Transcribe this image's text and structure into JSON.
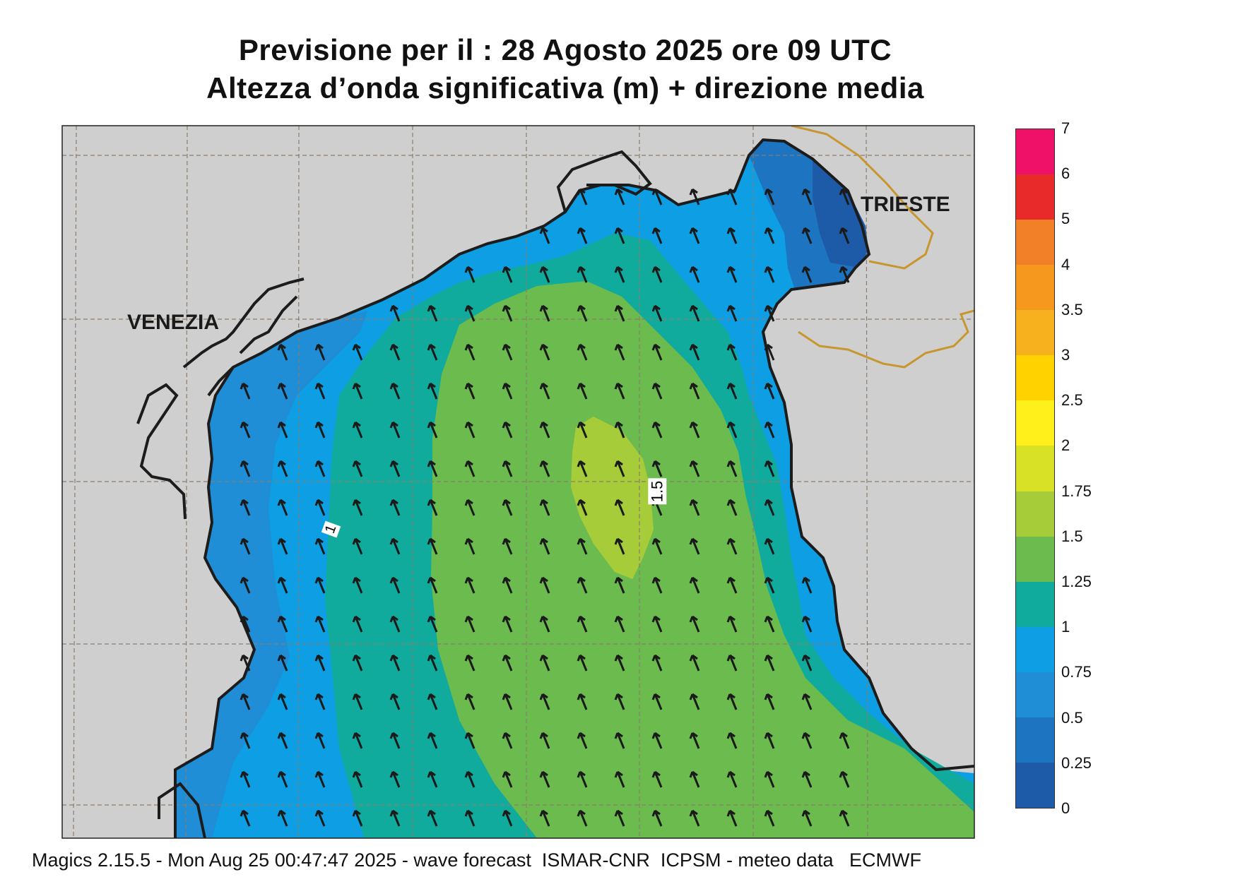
{
  "title_line1": "Previsione per il  :  28   Agosto  2025   ore 09 UTC",
  "title_line2": "Altezza d’onda significativa (m) + direzione media",
  "labels": {
    "venezia": "VENEZIA",
    "trieste": "TRIESTE"
  },
  "contour_labels": {
    "c1": "1",
    "c15": "1.5"
  },
  "legend": {
    "ticks": [
      "7",
      "6",
      "5",
      "4",
      "3.5",
      "3",
      "2.5",
      "2",
      "1.75",
      "1.5",
      "1.25",
      "1",
      "0.75",
      "0.5",
      "0.25",
      "0"
    ],
    "colors": [
      "#ee1167",
      "#e82a2a",
      "#f28028",
      "#f6971e",
      "#f7b01e",
      "#ffd200",
      "#ffef1a",
      "#d8e125",
      "#a6cc3a",
      "#6cbb4e",
      "#10ab9c",
      "#0d9ee3",
      "#1f8ed6",
      "#1d74c0",
      "#1d5ba8"
    ]
  },
  "colors": {
    "land": "#cfcfcf",
    "coast": "#1c1c1c",
    "border": "#c8962e",
    "grid": "#8c7c6c",
    "arrow": "#1a1a1a"
  },
  "footer": "Magics 2.15.5 - Mon Aug 25 00:47:47 2025 - wave forecast  ISMAR-CNR  ICPSM - meteo data   ECMWF"
}
